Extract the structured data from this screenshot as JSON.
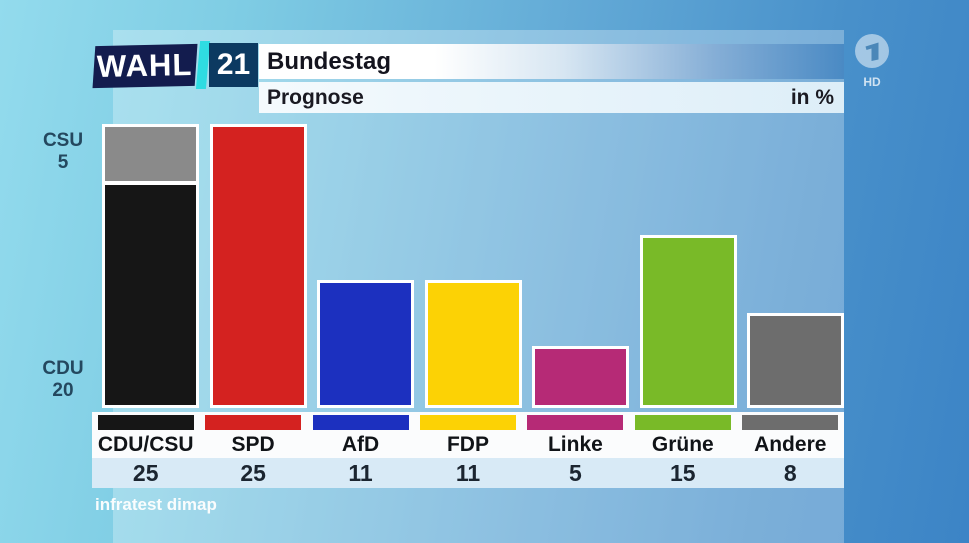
{
  "brand": {
    "wahl_text": "WAHL",
    "year_text": "21",
    "hd_badge": "HD"
  },
  "header": {
    "title": "Bundestag",
    "subtitle": "Prognose",
    "unit_label": "in %"
  },
  "axis": {
    "top_party": "CSU",
    "top_value": "5",
    "bottom_party": "CDU",
    "bottom_value": "20"
  },
  "source": "infratest dimap",
  "colors": {
    "accent_cyan": "#2fdce2",
    "logo_navy": "#131c4e",
    "year_box_blue": "#0c3a61",
    "value_strip_blue": "#d8eaf6"
  },
  "chart_data": {
    "type": "bar",
    "title": "Bundestag Prognose",
    "unit": "in %",
    "categories": [
      "CDU/CSU",
      "SPD",
      "AfD",
      "FDP",
      "Linke",
      "Grüne",
      "Andere"
    ],
    "values": [
      25,
      25,
      11,
      11,
      5,
      15,
      8
    ],
    "bar_colors": [
      "#161616",
      "#d42220",
      "#1c30bf",
      "#fcd205",
      "#b62a76",
      "#79ba28",
      "#6d6d6d"
    ],
    "first_bar_stack": [
      {
        "label": "CSU",
        "value": 5,
        "color": "#8a8a8a"
      },
      {
        "label": "CDU",
        "value": 20,
        "color": "#161616"
      }
    ],
    "ylim": [
      0,
      25
    ],
    "grid": false,
    "legend_position": "bottom",
    "value_labels_shown": true,
    "source": "infratest dimap"
  }
}
